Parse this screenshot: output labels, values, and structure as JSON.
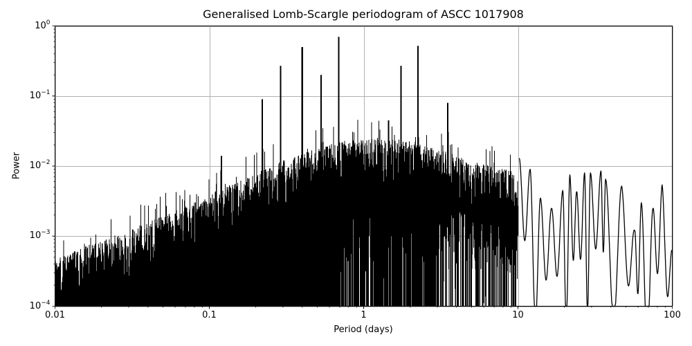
{
  "chart_data": {
    "type": "line",
    "title": "Generalised Lomb-Scargle periodogram of ASCC 1017908",
    "xlabel": "Period (days)",
    "ylabel": "Power",
    "xscale": "log",
    "yscale": "log",
    "xlim": [
      0.01,
      100
    ],
    "ylim": [
      0.0001,
      1
    ],
    "grid": true,
    "legend": null,
    "line_color": "#000000",
    "grid_color": "#b0b0b0",
    "x_ticks": [
      {
        "value": 0.01,
        "label": "0.01"
      },
      {
        "value": 0.1,
        "label": "0.1"
      },
      {
        "value": 1,
        "label": "1"
      },
      {
        "value": 10,
        "label": "10"
      },
      {
        "value": 100,
        "label": "100"
      }
    ],
    "y_ticks": [
      {
        "value": 1,
        "base": "10",
        "exp": "0"
      },
      {
        "value": 0.1,
        "base": "10",
        "exp": "−1"
      },
      {
        "value": 0.01,
        "base": "10",
        "exp": "−2"
      },
      {
        "value": 0.001,
        "base": "10",
        "exp": "−3"
      },
      {
        "value": 0.0001,
        "base": "10",
        "exp": "−4"
      }
    ],
    "prominent_peaks": [
      {
        "period": 0.69,
        "power": 0.7
      },
      {
        "period": 2.25,
        "power": 0.52
      },
      {
        "period": 0.4,
        "power": 0.5
      },
      {
        "period": 1.75,
        "power": 0.27
      },
      {
        "period": 0.29,
        "power": 0.27
      },
      {
        "period": 0.22,
        "power": 0.09
      },
      {
        "period": 3.5,
        "power": 0.08
      },
      {
        "period": 0.53,
        "power": 0.2
      },
      {
        "period": 1.45,
        "power": 0.045
      },
      {
        "period": 0.12,
        "power": 0.014
      }
    ],
    "envelope": [
      {
        "period": 0.01,
        "power": 0.00025
      },
      {
        "period": 0.03,
        "power": 0.0006
      },
      {
        "period": 0.1,
        "power": 0.002
      },
      {
        "period": 0.3,
        "power": 0.006
      },
      {
        "period": 0.7,
        "power": 0.012
      },
      {
        "period": 2.0,
        "power": 0.012
      },
      {
        "period": 5.0,
        "power": 0.006
      },
      {
        "period": 10.0,
        "power": 0.004
      }
    ],
    "long_period_lobes": [
      {
        "period": 10.2,
        "power": 0.013
      },
      {
        "period": 12.0,
        "power": 0.009
      },
      {
        "period": 14.0,
        "power": 0.0035
      },
      {
        "period": 16.5,
        "power": 0.0025
      },
      {
        "period": 19.5,
        "power": 0.0045
      },
      {
        "period": 21.7,
        "power": 0.0075
      },
      {
        "period": 24.0,
        "power": 0.0043
      },
      {
        "period": 27.0,
        "power": 0.008
      },
      {
        "period": 29.5,
        "power": 0.008
      },
      {
        "period": 34.5,
        "power": 0.0085
      },
      {
        "period": 37.0,
        "power": 0.0065
      },
      {
        "period": 47.0,
        "power": 0.0052
      },
      {
        "period": 57.0,
        "power": 0.0012
      },
      {
        "period": 63.0,
        "power": 0.003
      },
      {
        "period": 75.0,
        "power": 0.0025
      },
      {
        "period": 86.0,
        "power": 0.0054
      },
      {
        "period": 100.0,
        "power": 0.0006
      }
    ]
  }
}
